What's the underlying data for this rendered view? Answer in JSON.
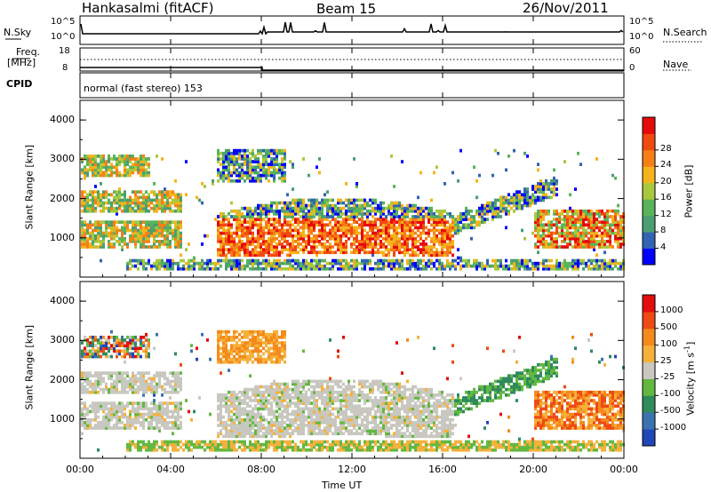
{
  "header": {
    "station": "Hankasalmi (fitACF)",
    "beam": "Beam 15",
    "date": "26/Nov/2011"
  },
  "strip": {
    "nsky_label": "N.Sky",
    "nsearch_label": "N.Search",
    "noise_ticks": [
      "10^5",
      "10^0"
    ],
    "noise_ticks_right": [
      "10^5",
      "10^0"
    ],
    "freq_label": "Freq.",
    "freq_unit": "[MHz]",
    "freq_ticks": [
      "18",
      "8"
    ],
    "nave_label": "Nave",
    "nave_ticks": [
      "60",
      "0"
    ],
    "cpid_label": "CPID",
    "cpid_value": "normal (fast stereo) 153"
  },
  "colors": {
    "frame": "#000000"
  },
  "chart_data": [
    {
      "type": "heatmap",
      "name": "power",
      "ylabel": "Slant Range [km]",
      "ylim": [
        0,
        4500
      ],
      "yticks": [
        "1000",
        "2000",
        "3000",
        "4000"
      ],
      "colorbar": {
        "label": "Power [dB]",
        "ticks": [
          "4",
          "8",
          "12",
          "16",
          "20",
          "24",
          "28"
        ],
        "colors": [
          "#0000ff",
          "#3264b4",
          "#4c9e70",
          "#59b45a",
          "#a8c93e",
          "#f6b31c",
          "#f77f17",
          "#f14a10",
          "#e60b0b"
        ]
      }
    },
    {
      "type": "heatmap",
      "name": "velocity",
      "ylabel": "Slant Range [km]",
      "ylim": [
        0,
        4500
      ],
      "yticks": [
        "1000",
        "2000",
        "3000",
        "4000"
      ],
      "colorbar": {
        "label": "Velocity [m s",
        "label_sup": "-1",
        "label_end": "]",
        "ticks": [
          "1000",
          "500",
          "100",
          "25",
          "-25",
          "-100",
          "-500",
          "-1000"
        ],
        "colors": [
          "#1f47b8",
          "#3b73b0",
          "#2f8a5c",
          "#63b840",
          "#c8c8c0",
          "#f5b13b",
          "#f48a1c",
          "#ee4a14",
          "#e20e0e"
        ]
      }
    }
  ],
  "xaxis": {
    "label": "Time UT",
    "ticks": [
      "00:00",
      "04:00",
      "08:00",
      "12:00",
      "16:00",
      "20:00",
      "00:00"
    ]
  }
}
